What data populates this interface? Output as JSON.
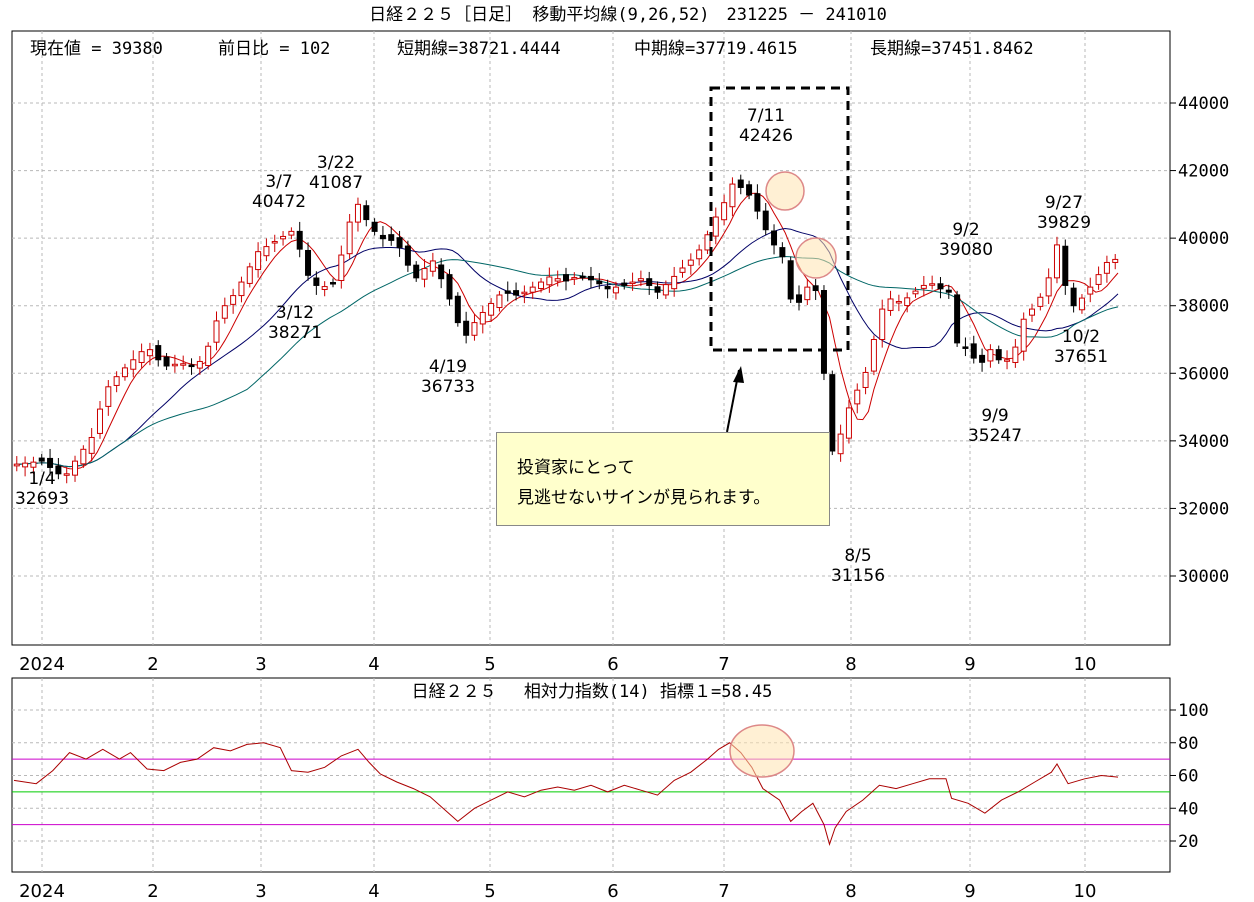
{
  "main": {
    "title": "日経２２５［日足］ 移動平均線(9,26,52)　231225 － 241010",
    "info": {
      "current": "現在値 = 39380",
      "change": "前日比 = 102",
      "short": "短期線=38721.4444",
      "mid": "中期線=37719.4615",
      "long": "長期線=37451.8462"
    },
    "callout": {
      "line1": "投資家にとって",
      "line2": "見逃せないサインが見られます。"
    }
  },
  "rsi": {
    "title": "日経２２５　 相対力指数(14) 指標１=58.45"
  },
  "chart_data": [
    {
      "type": "candlestick",
      "ylim": [
        28000,
        45500
      ],
      "yticks": [
        30000,
        32000,
        34000,
        36000,
        38000,
        40000,
        42000,
        44000
      ],
      "month_labels": [
        "2024",
        "2",
        "3",
        "4",
        "5",
        "6",
        "7",
        "8",
        "9",
        "10"
      ],
      "annotations": [
        {
          "date": "1/4",
          "value": "32693"
        },
        {
          "date": "3/7",
          "value": "40472"
        },
        {
          "date": "3/22",
          "value": "41087"
        },
        {
          "date": "3/12",
          "value": "38271"
        },
        {
          "date": "4/19",
          "value": "36733"
        },
        {
          "date": "7/11",
          "value": "42426"
        },
        {
          "date": "8/5",
          "value": "31156"
        },
        {
          "date": "9/2",
          "value": "39080"
        },
        {
          "date": "9/9",
          "value": "35247"
        },
        {
          "date": "9/27",
          "value": "39829"
        },
        {
          "date": "10/2",
          "value": "37651"
        }
      ],
      "moving_averages": [
        {
          "period": 9,
          "color": "#cc0000"
        },
        {
          "period": 26,
          "color": "#000066"
        },
        {
          "period": 52,
          "color": "#006666"
        }
      ],
      "close_path": [
        [
          0,
          33300
        ],
        [
          10,
          33400
        ],
        [
          18,
          32900
        ],
        [
          22,
          33400
        ],
        [
          28,
          34100
        ],
        [
          33,
          35500
        ],
        [
          38,
          36000
        ],
        [
          48,
          36800
        ],
        [
          54,
          36200
        ],
        [
          60,
          36300
        ],
        [
          66,
          36200
        ],
        [
          70,
          36800
        ],
        [
          74,
          37800
        ],
        [
          80,
          38400
        ],
        [
          84,
          39000
        ],
        [
          88,
          39600
        ],
        [
          94,
          39900
        ],
        [
          100,
          40200
        ],
        [
          104,
          39500
        ],
        [
          106,
          38900
        ],
        [
          110,
          38500
        ],
        [
          116,
          38700
        ],
        [
          120,
          40300
        ],
        [
          124,
          41000
        ],
        [
          128,
          40400
        ],
        [
          132,
          40000
        ],
        [
          138,
          39900
        ],
        [
          142,
          39200
        ],
        [
          146,
          38700
        ],
        [
          150,
          39500
        ],
        [
          154,
          38800
        ],
        [
          158,
          38000
        ],
        [
          162,
          37000
        ],
        [
          166,
          37500
        ],
        [
          170,
          37900
        ],
        [
          176,
          38400
        ],
        [
          182,
          38300
        ],
        [
          188,
          38600
        ],
        [
          194,
          38900
        ],
        [
          198,
          38700
        ],
        [
          204,
          38900
        ],
        [
          210,
          38700
        ],
        [
          214,
          38500
        ],
        [
          220,
          38600
        ],
        [
          226,
          38800
        ],
        [
          232,
          38400
        ],
        [
          236,
          38700
        ],
        [
          242,
          39200
        ],
        [
          246,
          39500
        ],
        [
          250,
          40100
        ],
        [
          254,
          40800
        ],
        [
          258,
          41300
        ],
        [
          260,
          41900
        ],
        [
          262,
          41500
        ],
        [
          266,
          41200
        ],
        [
          270,
          40400
        ],
        [
          274,
          39800
        ],
        [
          276,
          39600
        ],
        [
          278,
          39300
        ],
        [
          280,
          38200
        ],
        [
          282,
          37800
        ],
        [
          284,
          38400
        ],
        [
          288,
          38700
        ],
        [
          290,
          38200
        ],
        [
          292,
          36000
        ],
        [
          294,
          35400
        ],
        [
          296,
          32000
        ],
        [
          298,
          34200
        ],
        [
          300,
          34800
        ],
        [
          304,
          35500
        ],
        [
          308,
          36200
        ],
        [
          312,
          37800
        ],
        [
          316,
          38200
        ],
        [
          320,
          38100
        ],
        [
          326,
          38500
        ],
        [
          330,
          38700
        ],
        [
          334,
          38500
        ],
        [
          336,
          39000
        ],
        [
          338,
          37800
        ],
        [
          340,
          36900
        ],
        [
          344,
          36700
        ],
        [
          348,
          36200
        ],
        [
          352,
          36700
        ],
        [
          356,
          36300
        ],
        [
          360,
          36500
        ],
        [
          364,
          37600
        ],
        [
          368,
          38000
        ],
        [
          372,
          38500
        ],
        [
          376,
          39800
        ],
        [
          378,
          38800
        ],
        [
          382,
          38000
        ],
        [
          386,
          38300
        ],
        [
          390,
          38800
        ],
        [
          394,
          39280
        ],
        [
          398,
          39400
        ]
      ]
    },
    {
      "type": "line",
      "name": "相対力指数(14)",
      "ylim": [
        0,
        110
      ],
      "yticks": [
        20,
        40,
        60,
        80,
        100
      ],
      "reference_lines": [
        {
          "value": 70,
          "color": "#cc00cc"
        },
        {
          "value": 50,
          "color": "#00cc00"
        },
        {
          "value": 30,
          "color": "#cc00cc"
        }
      ],
      "month_labels": [
        "2024",
        "2",
        "3",
        "4",
        "5",
        "6",
        "7",
        "8",
        "9",
        "10"
      ],
      "points": [
        [
          0,
          57
        ],
        [
          8,
          55
        ],
        [
          14,
          63
        ],
        [
          20,
          74
        ],
        [
          26,
          70
        ],
        [
          32,
          76
        ],
        [
          38,
          70
        ],
        [
          42,
          74
        ],
        [
          48,
          64
        ],
        [
          54,
          63
        ],
        [
          60,
          68
        ],
        [
          66,
          70
        ],
        [
          72,
          77
        ],
        [
          78,
          75
        ],
        [
          84,
          79
        ],
        [
          90,
          80
        ],
        [
          96,
          77
        ],
        [
          100,
          63
        ],
        [
          106,
          62
        ],
        [
          112,
          65
        ],
        [
          118,
          72
        ],
        [
          124,
          76
        ],
        [
          128,
          68
        ],
        [
          132,
          61
        ],
        [
          138,
          56
        ],
        [
          144,
          52
        ],
        [
          150,
          47
        ],
        [
          156,
          38
        ],
        [
          160,
          32
        ],
        [
          166,
          40
        ],
        [
          172,
          45
        ],
        [
          178,
          50
        ],
        [
          184,
          47
        ],
        [
          190,
          51
        ],
        [
          196,
          53
        ],
        [
          202,
          51
        ],
        [
          208,
          54
        ],
        [
          214,
          50
        ],
        [
          220,
          54
        ],
        [
          226,
          51
        ],
        [
          232,
          48
        ],
        [
          238,
          57
        ],
        [
          244,
          62
        ],
        [
          250,
          70
        ],
        [
          254,
          76
        ],
        [
          258,
          80
        ],
        [
          262,
          74
        ],
        [
          266,
          65
        ],
        [
          270,
          52
        ],
        [
          276,
          45
        ],
        [
          280,
          32
        ],
        [
          284,
          38
        ],
        [
          288,
          43
        ],
        [
          292,
          30
        ],
        [
          294,
          18
        ],
        [
          296,
          28
        ],
        [
          300,
          38
        ],
        [
          306,
          45
        ],
        [
          312,
          54
        ],
        [
          318,
          52
        ],
        [
          324,
          55
        ],
        [
          330,
          58
        ],
        [
          336,
          58
        ],
        [
          338,
          46
        ],
        [
          344,
          43
        ],
        [
          350,
          37
        ],
        [
          356,
          45
        ],
        [
          362,
          50
        ],
        [
          368,
          56
        ],
        [
          374,
          62
        ],
        [
          376,
          67
        ],
        [
          380,
          55
        ],
        [
          386,
          58
        ],
        [
          392,
          60
        ],
        [
          398,
          59
        ]
      ]
    }
  ]
}
